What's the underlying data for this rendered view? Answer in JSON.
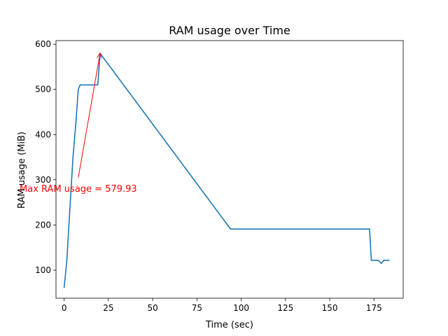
{
  "chart_data": {
    "type": "line",
    "title": "RAM usage over Time",
    "xlabel": "Time (sec)",
    "ylabel": "RAM usage (MiB)",
    "xlim": [
      -4.6,
      191.5
    ],
    "ylim": [
      38,
      608
    ],
    "xticks": [
      0,
      25,
      50,
      75,
      100,
      125,
      150,
      175
    ],
    "yticks": [
      100,
      200,
      300,
      400,
      500,
      600
    ],
    "grid": false,
    "legend": "none",
    "series": [
      {
        "color": "#1f77b4",
        "x": [
          0,
          1.5,
          3,
          5,
          6.5,
          8,
          9,
          19,
          20.3,
          94,
          172.5,
          173.5,
          177,
          178,
          179.2,
          180.6,
          183.5
        ],
        "y": [
          62,
          120,
          220,
          350,
          420,
          500,
          510,
          510,
          579.93,
          191,
          191,
          122,
          122,
          120,
          115,
          122,
          122
        ]
      }
    ],
    "annotation": {
      "text": "Max RAM usage = 579.93",
      "color": "#ff0000",
      "text_anchor": [
        8,
        280
      ],
      "arrow_from": [
        8,
        305
      ],
      "arrow_to": [
        20.3,
        579.93
      ]
    }
  }
}
